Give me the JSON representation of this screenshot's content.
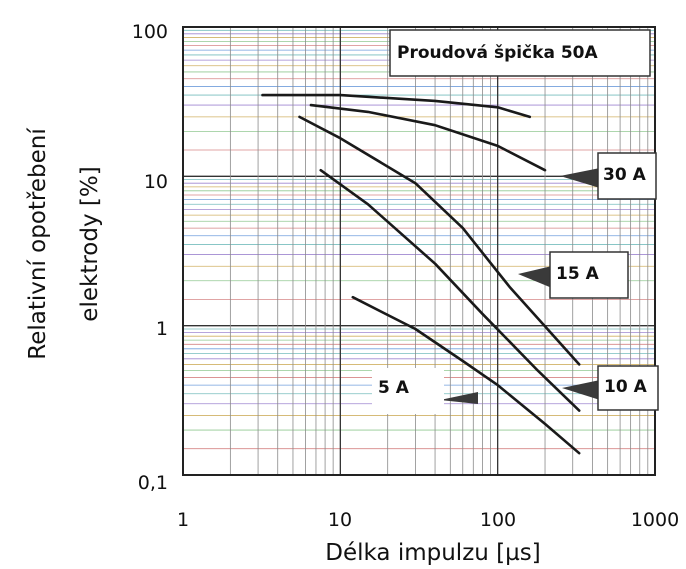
{
  "chart_data": {
    "type": "line",
    "title": "",
    "xlabel": "Délka impulzu [µs]",
    "ylabel_line1": "Relativní opotřebení",
    "ylabel_line2": "elektrody [%]",
    "xscale": "log",
    "yscale": "log",
    "xlim": [
      1,
      1000
    ],
    "ylim": [
      0.1,
      100
    ],
    "x_tick_labels": [
      "1",
      "10",
      "100",
      "1000"
    ],
    "y_tick_labels": [
      "0,1",
      "1",
      "10",
      "100"
    ],
    "grid": true,
    "series": [
      {
        "name": "Proudová špička 50A",
        "x": [
          3.2,
          10,
          40,
          100,
          160
        ],
        "y": [
          35,
          35,
          32,
          29,
          25
        ]
      },
      {
        "name": "30 A",
        "x": [
          6.5,
          15,
          40,
          100,
          200
        ],
        "y": [
          30,
          27,
          22,
          16,
          11
        ]
      },
      {
        "name": "15 A",
        "x": [
          5.5,
          10,
          30,
          60,
          120,
          330
        ],
        "y": [
          25,
          18,
          9,
          4.5,
          1.8,
          0.55
        ]
      },
      {
        "name": "10 A",
        "x": [
          7.5,
          15,
          40,
          80,
          180,
          330
        ],
        "y": [
          11,
          6.5,
          2.6,
          1.2,
          0.5,
          0.27
        ]
      },
      {
        "name": "5 A",
        "x": [
          12,
          30,
          60,
          100,
          200,
          330
        ],
        "y": [
          1.55,
          0.95,
          0.58,
          0.4,
          0.22,
          0.14
        ]
      }
    ],
    "annotations": {
      "peak_label": "Proudová špička 50A",
      "label_30": "30 A",
      "label_15": "15 A",
      "label_10": "10 A",
      "label_5": "5 A"
    },
    "colors": {
      "line": "#1a1a1a",
      "grid_horizontal_palette": [
        "#5a8fd6",
        "#d07070",
        "#7fbf7f",
        "#c9a44a",
        "#8f72c9",
        "#5fb3b3"
      ],
      "grid_vertical": "#8a8a8a",
      "frame": "#222222"
    }
  }
}
